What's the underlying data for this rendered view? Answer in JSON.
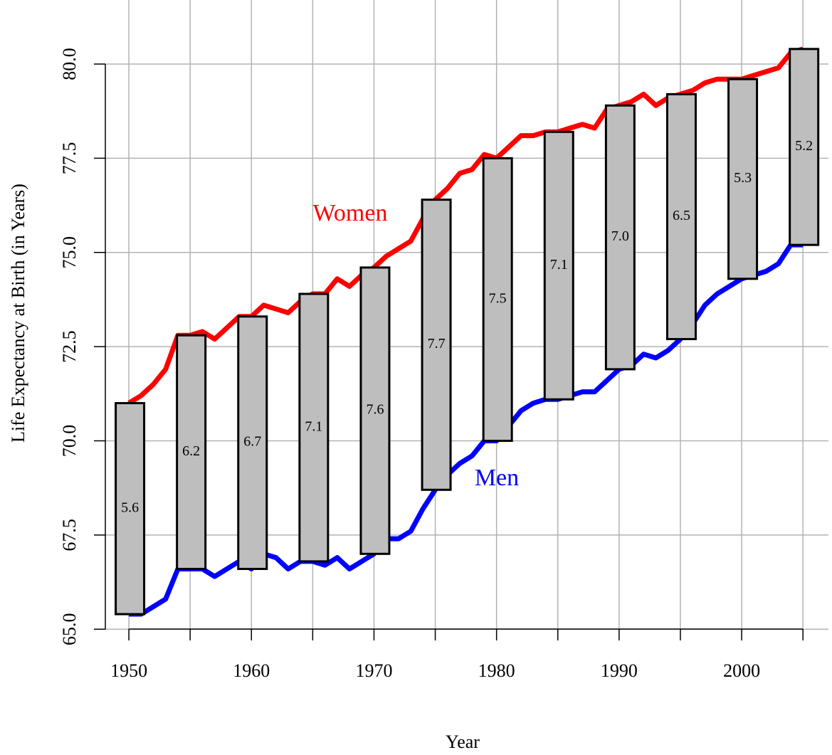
{
  "chart_data": {
    "type": "line",
    "xlabel": "Year",
    "ylabel": "Life Expectancy at Birth (in Years)",
    "x": [
      1950,
      1951,
      1952,
      1953,
      1954,
      1955,
      1956,
      1957,
      1958,
      1959,
      1960,
      1961,
      1962,
      1963,
      1964,
      1965,
      1966,
      1967,
      1968,
      1969,
      1970,
      1971,
      1972,
      1973,
      1974,
      1975,
      1976,
      1977,
      1978,
      1979,
      1980,
      1981,
      1982,
      1983,
      1984,
      1985,
      1986,
      1987,
      1988,
      1989,
      1990,
      1991,
      1992,
      1993,
      1994,
      1995,
      1996,
      1997,
      1998,
      1999,
      2000,
      2001,
      2002,
      2003,
      2004,
      2005
    ],
    "series": [
      {
        "name": "Women",
        "color": "#ff0000",
        "values": [
          71.0,
          71.2,
          71.5,
          71.9,
          72.8,
          72.8,
          72.9,
          72.7,
          73.0,
          73.3,
          73.3,
          73.6,
          73.5,
          73.4,
          73.7,
          73.9,
          73.9,
          74.3,
          74.1,
          74.4,
          74.6,
          74.9,
          75.1,
          75.3,
          75.9,
          76.4,
          76.7,
          77.1,
          77.2,
          77.6,
          77.5,
          77.8,
          78.1,
          78.1,
          78.2,
          78.2,
          78.3,
          78.4,
          78.3,
          78.8,
          78.9,
          79.0,
          79.2,
          78.9,
          79.1,
          79.2,
          79.3,
          79.5,
          79.6,
          79.6,
          79.6,
          79.7,
          79.8,
          79.9,
          80.3,
          80.4
        ]
      },
      {
        "name": "Men",
        "color": "#0000ff",
        "values": [
          65.4,
          65.4,
          65.6,
          65.8,
          66.6,
          66.6,
          66.6,
          66.4,
          66.6,
          66.8,
          66.6,
          67.0,
          66.9,
          66.6,
          66.8,
          66.8,
          66.7,
          66.9,
          66.6,
          66.8,
          67.0,
          67.4,
          67.4,
          67.6,
          68.2,
          68.7,
          69.1,
          69.4,
          69.6,
          70.0,
          70.0,
          70.4,
          70.8,
          71.0,
          71.1,
          71.1,
          71.2,
          71.3,
          71.3,
          71.6,
          71.9,
          72.0,
          72.3,
          72.2,
          72.4,
          72.7,
          73.1,
          73.6,
          73.9,
          74.1,
          74.3,
          74.4,
          74.5,
          74.7,
          75.2,
          75.2
        ]
      }
    ],
    "gaps": {
      "x": [
        1950,
        1955,
        1960,
        1965,
        1970,
        1975,
        1980,
        1985,
        1990,
        1995,
        2000,
        2005
      ],
      "values": [
        5.6,
        6.2,
        6.7,
        7.1,
        7.6,
        7.7,
        7.5,
        7.1,
        7.0,
        6.5,
        5.3,
        5.2
      ],
      "value_labels": [
        "5.6",
        "6.2",
        "6.7",
        "7.1",
        "7.6",
        "7.7",
        "7.5",
        "7.1",
        "7.0",
        "6.5",
        "5.3",
        "5.2"
      ],
      "color": "#bebebe"
    },
    "xlim": [
      1948.08,
      2007.08
    ],
    "ylim": [
      64.4,
      81.7
    ],
    "xticks": [
      1950,
      1960,
      1970,
      1980,
      1990,
      2000
    ],
    "xgrid": [
      1950,
      1955,
      1960,
      1965,
      1970,
      1975,
      1980,
      1985,
      1990,
      1995,
      2000,
      2005
    ],
    "yticks": [
      {
        "value": 65,
        "label": "65.0"
      },
      {
        "value": 67.5,
        "label": "67.5"
      },
      {
        "value": 70,
        "label": "70.0"
      },
      {
        "value": 72.5,
        "label": "72.5"
      },
      {
        "value": 75,
        "label": "75.0"
      },
      {
        "value": 77.5,
        "label": "77.5"
      },
      {
        "value": 80,
        "label": "80.0"
      }
    ],
    "grid": true
  }
}
